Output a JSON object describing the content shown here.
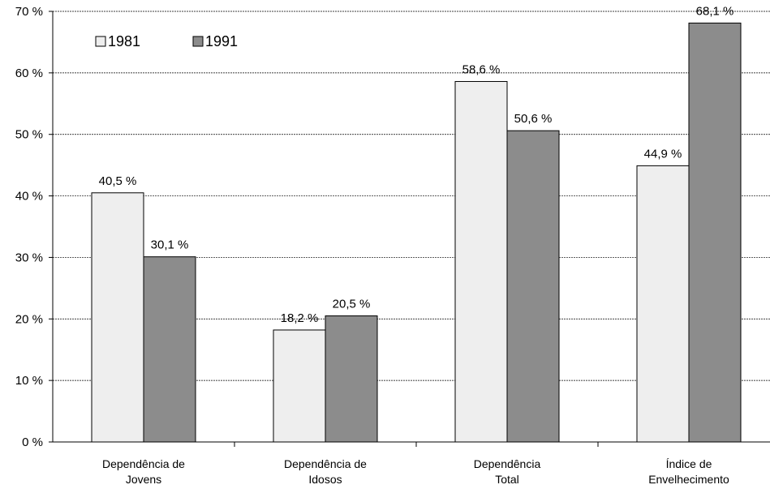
{
  "chart_data": {
    "type": "bar",
    "categories": [
      "Dependência de\nJovens",
      "Dependência de\nIdosos",
      "Dependência\nTotal",
      "Índice de\nEnvelhecimento"
    ],
    "series": [
      {
        "name": "1981",
        "color": "#eeeeee",
        "values": [
          40.5,
          18.2,
          58.6,
          44.9
        ],
        "value_labels": [
          "40,5 %",
          "18,2 %",
          "58,6 %",
          "44,9 %"
        ]
      },
      {
        "name": "1991",
        "color": "#8c8c8c",
        "values": [
          30.1,
          20.5,
          50.6,
          68.1
        ],
        "value_labels": [
          "30,1 %",
          "20,5 %",
          "50,6 %",
          "68,1 %"
        ]
      }
    ],
    "ylim": [
      0,
      70
    ],
    "yticks": [
      {
        "value": 0,
        "label": "0 %"
      },
      {
        "value": 10,
        "label": "10 %"
      },
      {
        "value": 20,
        "label": "20 %"
      },
      {
        "value": 30,
        "label": "30 %"
      },
      {
        "value": 40,
        "label": "40 %"
      },
      {
        "value": 50,
        "label": "50 %"
      },
      {
        "value": 60,
        "label": "60 %"
      },
      {
        "value": 70,
        "label": "70 %"
      }
    ],
    "grid": true
  }
}
